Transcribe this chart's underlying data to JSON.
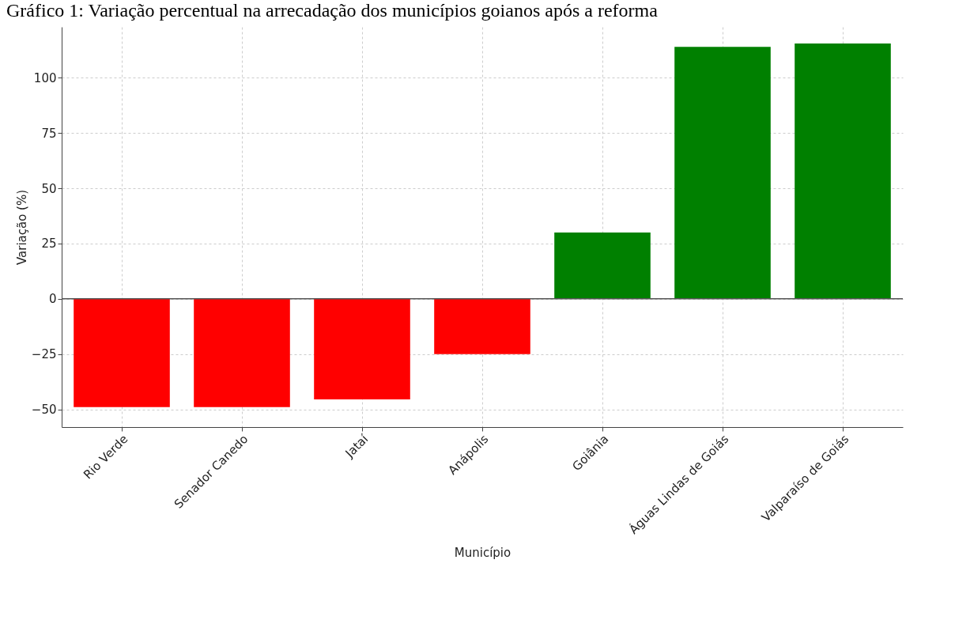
{
  "chart_data": {
    "type": "bar",
    "title": "Gráfico 1: Variação percentual na arrecadação dos municípios goianos após a reforma",
    "xlabel": "Município",
    "ylabel": "Variação (%)",
    "categories": [
      "Rio Verde",
      "Senador Canedo",
      "Jataí",
      "Anápolis",
      "Goiânia",
      "Águas Lindas de Goiás",
      "Valparaíso de Goiás"
    ],
    "values": [
      -49,
      -49,
      -45.5,
      -25,
      30,
      114,
      115.5
    ],
    "colors": [
      "#ff0000",
      "#ff0000",
      "#ff0000",
      "#ff0000",
      "#008000",
      "#008000",
      "#008000"
    ],
    "ylim": [
      -58,
      123
    ],
    "yticks": [
      -50,
      -25,
      0,
      25,
      50,
      75,
      100
    ],
    "ref_lines": [
      {
        "axis": "y",
        "value": 0,
        "color": "#555555"
      }
    ],
    "grid": true
  }
}
